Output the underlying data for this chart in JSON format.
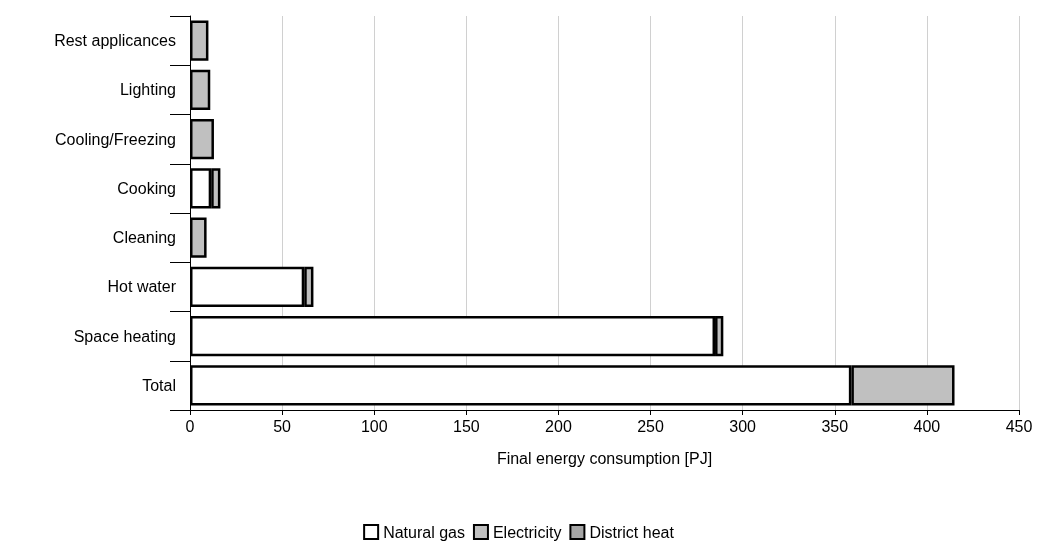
{
  "chart_data": {
    "type": "bar",
    "orientation": "horizontal",
    "stacked": true,
    "xlabel": "Final energy consumption [PJ]",
    "categories": [
      "Rest applicances",
      "Lighting",
      "Cooling/Freezing",
      "Cooking",
      "Cleaning",
      "Hot water",
      "Space heating",
      "Total"
    ],
    "series": [
      {
        "name": "Natural gas",
        "color": "#ffffff",
        "values": [
          null,
          null,
          null,
          11.5,
          null,
          62,
          285,
          359
        ]
      },
      {
        "name": "Electricity",
        "color": "#c0c0c0",
        "values": [
          10,
          11,
          13,
          5,
          9,
          5,
          4.5,
          56
        ]
      },
      {
        "name": "District heat",
        "color": "#a6a6a6",
        "values": [
          null,
          null,
          null,
          null,
          null,
          null,
          null,
          null
        ]
      }
    ],
    "xlim": [
      0,
      450
    ],
    "xticks": [
      0,
      50,
      100,
      150,
      200,
      250,
      300,
      350,
      400,
      450
    ],
    "grid": "x",
    "legend": "bottom"
  }
}
